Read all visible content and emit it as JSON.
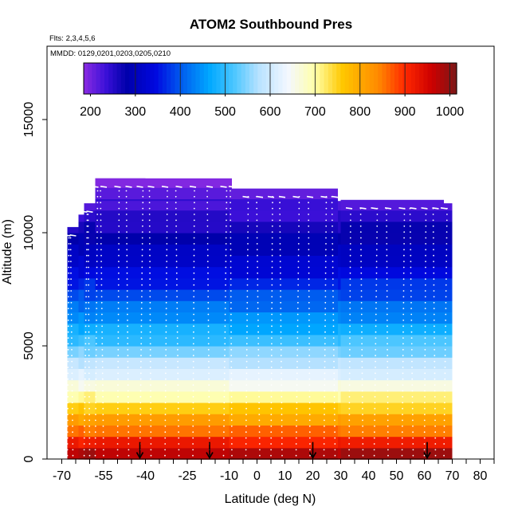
{
  "chart_data": {
    "type": "heatmap",
    "title": "ATOM2 Southbound Pres",
    "flights_note": "Flts: 2,3,4,5,6",
    "dates_note": "MMDD: 0129,0201,0203,0205,0210",
    "xlabel": "Latitude (deg N)",
    "ylabel": "Altitude (m)",
    "xlim": [
      -70,
      85
    ],
    "ylim": [
      0,
      17500
    ],
    "x_ticks": [
      -70,
      -55,
      -40,
      -25,
      -10,
      0,
      10,
      20,
      30,
      40,
      50,
      60,
      70,
      80
    ],
    "x_tick_labels": [
      "-70",
      "-55",
      "-40",
      "-25",
      "-10",
      "0",
      "10",
      "20",
      "30",
      "40",
      "50",
      "60",
      "70",
      "80"
    ],
    "y_ticks": [
      0,
      5000,
      10000,
      15000
    ],
    "y_tick_labels": [
      "0",
      "5000",
      "10000",
      "15000"
    ],
    "colorbar": {
      "range": [
        185,
        1015
      ],
      "ticks": [
        200,
        300,
        400,
        500,
        600,
        700,
        800,
        900,
        1000
      ],
      "tick_labels": [
        "200",
        "300",
        "400",
        "500",
        "600",
        "700",
        "800",
        "900",
        "1000"
      ],
      "divider_values": [
        300,
        400,
        500,
        600,
        700,
        800,
        900,
        1000
      ],
      "stops": [
        {
          "v": 185,
          "c": "#8a2be2"
        },
        {
          "v": 235,
          "c": "#3a10d8"
        },
        {
          "v": 280,
          "c": "#0000aa"
        },
        {
          "v": 345,
          "c": "#0008e0"
        },
        {
          "v": 405,
          "c": "#0060f0"
        },
        {
          "v": 465,
          "c": "#00a8ff"
        },
        {
          "v": 520,
          "c": "#4cc6ff"
        },
        {
          "v": 575,
          "c": "#b8e2ff"
        },
        {
          "v": 640,
          "c": "#f4f8ff"
        },
        {
          "v": 700,
          "c": "#ffffa8"
        },
        {
          "v": 760,
          "c": "#ffc800"
        },
        {
          "v": 840,
          "c": "#ff8a00"
        },
        {
          "v": 900,
          "c": "#ff2800"
        },
        {
          "v": 960,
          "c": "#cc0000"
        },
        {
          "v": 1015,
          "c": "#7a1818"
        }
      ]
    },
    "surface_pressure": 1013.25,
    "pressure_scale_height": 7600,
    "altitude_bin_size": 500,
    "coverage": [
      {
        "lat_min": -68,
        "lat_max": 70,
        "alt_max": 10250
      },
      {
        "lat_min": -64,
        "lat_max": 70,
        "alt_max": 10800
      },
      {
        "lat_min": -62,
        "lat_max": 70,
        "alt_max": 11300
      },
      {
        "lat_min": -58,
        "lat_max": -40,
        "alt_max": 12400
      },
      {
        "lat_min": -58,
        "lat_max": -9,
        "alt_max": 12400
      },
      {
        "lat_min": -58,
        "lat_max": 65,
        "alt_max": 11400
      },
      {
        "lat_min": -10,
        "lat_max": 29,
        "alt_max": 11950
      },
      {
        "lat_min": 30,
        "lat_max": 67,
        "alt_max": 11450
      }
    ],
    "profile_latitudes": [
      -68,
      -66,
      -62,
      -60,
      -58,
      -55,
      -50,
      -46,
      -42,
      -38,
      -33,
      -28,
      -23,
      -17,
      -12,
      -9,
      -4,
      1,
      5,
      9,
      14,
      19,
      24,
      28,
      33,
      38,
      42,
      47,
      52,
      56,
      60,
      64,
      67
    ],
    "ascent_markers_lat": [
      -42,
      -17,
      20,
      61
    ],
    "point_color": "#ffffff",
    "marker_color": "#000000"
  }
}
